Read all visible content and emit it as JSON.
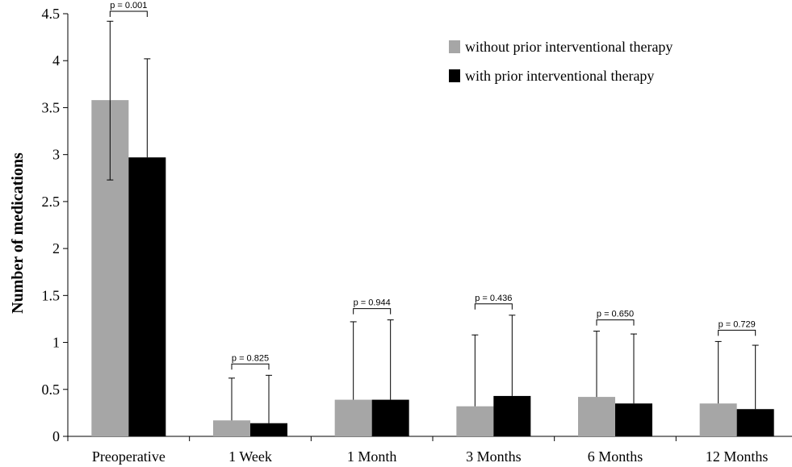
{
  "chart_data": {
    "type": "bar",
    "title": "",
    "xlabel": "",
    "ylabel": "Number  of medications",
    "ylim": [
      0,
      4.5
    ],
    "yticks": [
      "0",
      "0.5",
      "1",
      "1.5",
      "2",
      "2.5",
      "3",
      "3.5",
      "4",
      "4.5"
    ],
    "grid": false,
    "legend_position": "top-right",
    "categories": [
      "Preoperative",
      "1 Week",
      "1 Month",
      "3 Months",
      "6 Months",
      "12 Months"
    ],
    "series": [
      {
        "name": "without prior interventional therapy",
        "color": "#a6a6a6",
        "values": [
          3.58,
          0.17,
          0.39,
          0.32,
          0.42,
          0.35
        ],
        "error_upper": [
          4.42,
          0.62,
          1.22,
          1.08,
          1.12,
          1.01
        ],
        "error_lower": [
          2.73,
          null,
          null,
          null,
          null,
          null
        ]
      },
      {
        "name": "with prior interventional therapy",
        "color": "#000000",
        "values": [
          2.97,
          0.14,
          0.39,
          0.43,
          0.35,
          0.29
        ],
        "error_upper": [
          4.02,
          0.65,
          1.24,
          1.29,
          1.09,
          0.97
        ],
        "error_lower": [
          null,
          null,
          null,
          null,
          null,
          null
        ]
      }
    ],
    "annotations": [
      {
        "category": "Preoperative",
        "text": "p = 0.001"
      },
      {
        "category": "1 Week",
        "text": "p = 0.825"
      },
      {
        "category": "1 Month",
        "text": "p = 0.944"
      },
      {
        "category": "3 Months",
        "text": "p = 0.436"
      },
      {
        "category": "6 Months",
        "text": "p = 0.650"
      },
      {
        "category": "12 Months",
        "text": "p = 0.729"
      }
    ]
  }
}
